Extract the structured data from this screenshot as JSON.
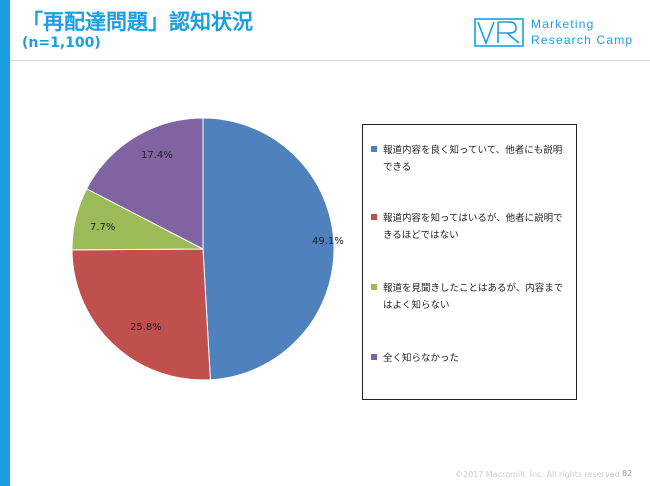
{
  "header": {
    "title": "「再配達問題」認知状況",
    "subtitle": "(n=1,100)",
    "logo_line1": "Marketing",
    "logo_line2": "Research Camp",
    "brand_color": "#1a9fe0"
  },
  "chart_data": {
    "type": "pie",
    "title": "",
    "legend_placement": "right",
    "slices": [
      {
        "label": "報道内容を良く知っていて、他者にも説明できる",
        "value": 49.1,
        "pct_label": "49.1%",
        "color": "#4f81bd"
      },
      {
        "label": "報道内容を知ってはいるが、他者に説明できるほどではない",
        "value": 25.8,
        "pct_label": "25.8%",
        "color": "#c0504d"
      },
      {
        "label": "報道を見聞きしたことはあるが、内容まではよく知らない",
        "value": 7.7,
        "pct_label": "7.7%",
        "color": "#9bbb59"
      },
      {
        "label": "全く知らなかった",
        "value": 17.4,
        "pct_label": "17.4%",
        "color": "#8064a2"
      }
    ]
  },
  "footer": {
    "copyright": "©2017 Macromill, Inc. All rights reserved.",
    "page_number": "82"
  }
}
